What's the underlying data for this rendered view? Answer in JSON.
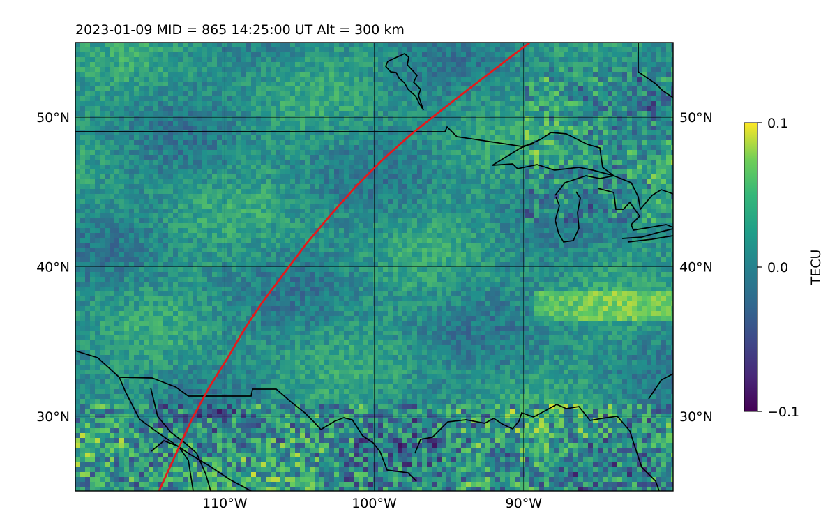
{
  "figure": {
    "title": "2023-01-09  MID = 865    14:25:00  UT  Alt = 300 km"
  },
  "map": {
    "lon_range": [
      -120,
      -80
    ],
    "lat_range": [
      25,
      55
    ],
    "grid_lons": [
      -110,
      -100,
      -90
    ],
    "grid_lats": [
      30,
      40,
      50
    ],
    "lon_tick_labels": [
      "110°W",
      "100°W",
      "90°W"
    ],
    "lat_tick_labels": [
      "30°N",
      "40°N",
      "50°N"
    ],
    "field_colormap": "viridis",
    "coastline_color": "#000000",
    "track_color": "#e41a1c",
    "track": [
      [
        -114.4,
        25
      ],
      [
        -113.3,
        27.4
      ],
      [
        -112.2,
        29.8
      ],
      [
        -111.0,
        32.0
      ],
      [
        -109.8,
        33.9
      ],
      [
        -108.7,
        35.8
      ],
      [
        -107.5,
        37.6
      ],
      [
        -106.0,
        39.6
      ],
      [
        -104.5,
        41.6
      ],
      [
        -102.8,
        43.6
      ],
      [
        -101.2,
        45.4
      ],
      [
        -99.4,
        47.2
      ],
      [
        -97.6,
        48.8
      ],
      [
        -95.6,
        50.4
      ],
      [
        -93.4,
        52.1
      ],
      [
        -91.3,
        53.7
      ],
      [
        -89.6,
        55
      ]
    ]
  },
  "colorbar": {
    "label": "TECU",
    "ticks": [
      {
        "value": 0.1,
        "label": "0.1"
      },
      {
        "value": 0.0,
        "label": "0.0"
      },
      {
        "value": -0.1,
        "label": "−0.1"
      }
    ],
    "vmin": -0.1,
    "vmax": 0.1
  }
}
